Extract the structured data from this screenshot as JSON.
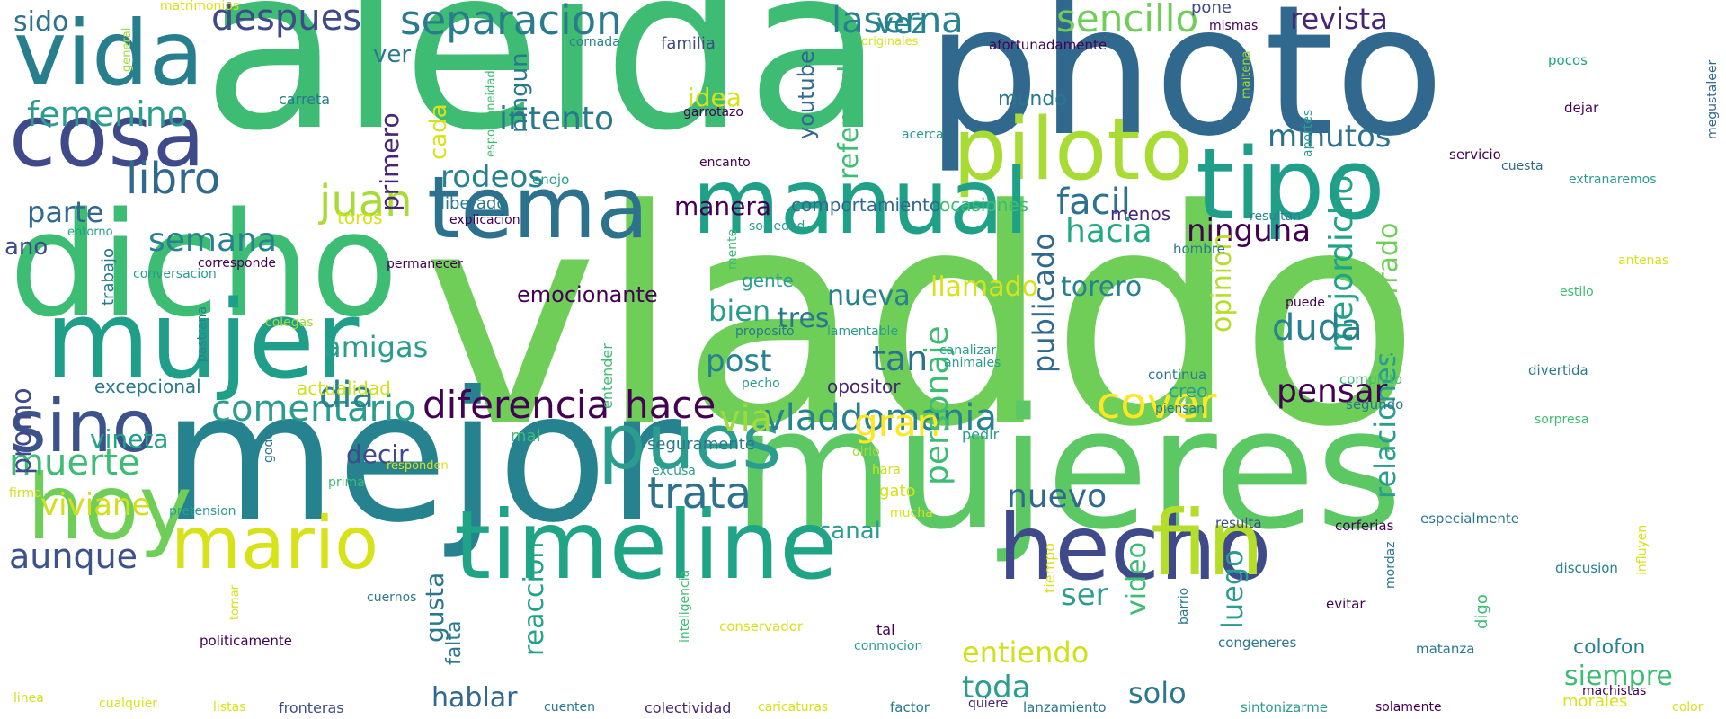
{
  "palette": {
    "background": "#ffffff",
    "p1": "#440154",
    "p2": "#482677",
    "p3": "#3e4a89",
    "p4": "#31688e",
    "p5": "#26828e",
    "p6": "#1f9e89",
    "p7": "#35b779",
    "p8": "#6ece58",
    "p9": "#b5de2b",
    "p10": "#fde725"
  },
  "words": [
    "vladdo",
    "aleida",
    "photo",
    "mejor",
    "mujeres",
    "dicho",
    "mujer",
    "timeline",
    "tipo",
    "piloto",
    "manual",
    "vida",
    "tema",
    "cosa",
    "hecho",
    "fin",
    "hoy",
    "mario",
    "sino",
    "pues",
    "cover",
    "trata",
    "diferencia",
    "hace",
    "vladdomania",
    "juan",
    "comentario",
    "libro",
    "separacion",
    "despues",
    "sencillo",
    "laserna",
    "revista",
    "intento",
    "rodeos",
    "minutos",
    "facil",
    "hacia",
    "ninguna",
    "mejor",
    "dicho",
    "publicado",
    "opinion",
    "relaciones",
    "encerrado",
    "duda",
    "pensar",
    "femenino",
    "semana",
    "parte",
    "muerte",
    "viviane",
    "aunque",
    "promo",
    "vineta",
    "amigas",
    "dia",
    "decir",
    "gran",
    "via",
    "personaje",
    "nuevo",
    "nueva",
    "bien",
    "tres",
    "post",
    "tan",
    "llamado",
    "torero",
    "luego",
    "video",
    "reaccion",
    "gusta",
    "falta",
    "ser",
    "solo",
    "toda",
    "entiendo",
    "siempre",
    "colofon",
    "hablar",
    "emocionante",
    "manera",
    "comportamiento",
    "ocasiones",
    "youtube",
    "referendo",
    "cada",
    "primero",
    "idea",
    "ningun",
    "vez",
    "ver",
    "sido",
    "matrimonios",
    "general",
    "espontaneidad",
    "cornada",
    "familia",
    "carreta",
    "originales",
    "afortunadamente",
    "mismas",
    "pone",
    "megustaleer",
    "maitena",
    "pocos",
    "dejar",
    "aportes",
    "servicio",
    "cuesta",
    "extranaremos",
    "garrotazo",
    "encanto",
    "acerca",
    "enojo",
    "mundo",
    "ano",
    "entorno",
    "explicacion",
    "liberado",
    "toros",
    "sociedad",
    "menos",
    "resultan",
    "corresponde",
    "permanecer",
    "conversacion",
    "trabajo",
    "mente",
    "hombre",
    "gente",
    "proposito",
    "lamentable",
    "canalizar",
    "animales",
    "continua",
    "creo",
    "piensan",
    "completo",
    "segundo",
    "divertida",
    "sorpresa",
    "estilo",
    "antenas",
    "puede",
    "colegas",
    "pastrana",
    "excepcional",
    "actualidad",
    "opositor",
    "pecho",
    "entender",
    "pedir",
    "oirlo",
    "hara",
    "gato",
    "mucha",
    "seguramente",
    "excusa",
    "mal",
    "godo",
    "prima",
    "responden",
    "firma",
    "pretension",
    "resulta",
    "corferias",
    "especialmente",
    "influyen",
    "canal",
    "discusion",
    "mordaz",
    "evitar",
    "digo",
    "barrio",
    "tiempo",
    "inteligencia",
    "cuernos",
    "tomar",
    "politicamente",
    "conservador",
    "tal",
    "conmocion",
    "congeneres",
    "matanza",
    "machistas",
    "linea",
    "cualquier",
    "listas",
    "fronteras",
    "cuenten",
    "colectividad",
    "caricaturas",
    "factor",
    "quiere",
    "lanzamiento",
    "sintonizarme",
    "solamente",
    "morales",
    "color"
  ]
}
